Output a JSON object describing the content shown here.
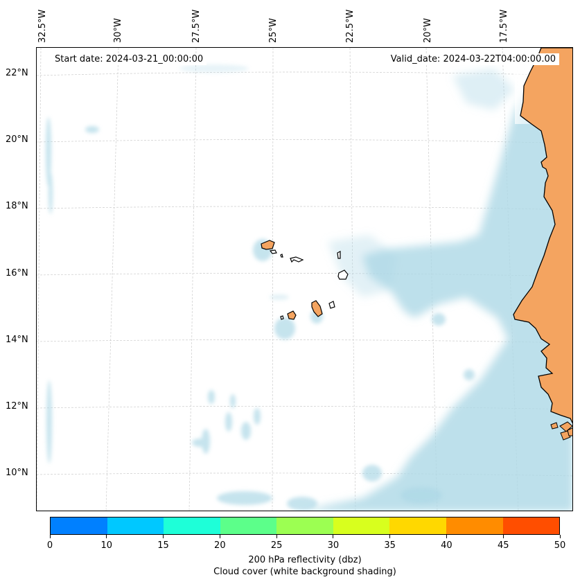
{
  "map": {
    "start_date": "Start date: 2024-03-21_00:00:00",
    "valid_date": "Valid_date: 2024-03-22T04:00:00.00",
    "longitude_labels": [
      "32.5°W",
      "30°W",
      "27.5°W",
      "25°W",
      "22.5°W",
      "20°W",
      "17.5°W"
    ],
    "latitude_labels": [
      "22°N",
      "20°N",
      "18°N",
      "16°N",
      "14°N",
      "12°N",
      "10°N"
    ]
  },
  "colors": {
    "land": "#f4a460",
    "cloud": "#add8e6",
    "coast": "#000000",
    "gridline": "#cccccc"
  },
  "colorbar": {
    "ticks": [
      "0",
      "10",
      "15",
      "20",
      "25",
      "30",
      "35",
      "40",
      "45",
      "50"
    ],
    "colors": [
      "#0080ff",
      "#00c8ff",
      "#1effd8",
      "#5cff8a",
      "#9cff52",
      "#d8ff1e",
      "#ffd800",
      "#ff8c00",
      "#ff4e00"
    ],
    "label": "200 hPa reflectivity (dbz)",
    "sublabel": "Cloud cover (white background shading)"
  }
}
